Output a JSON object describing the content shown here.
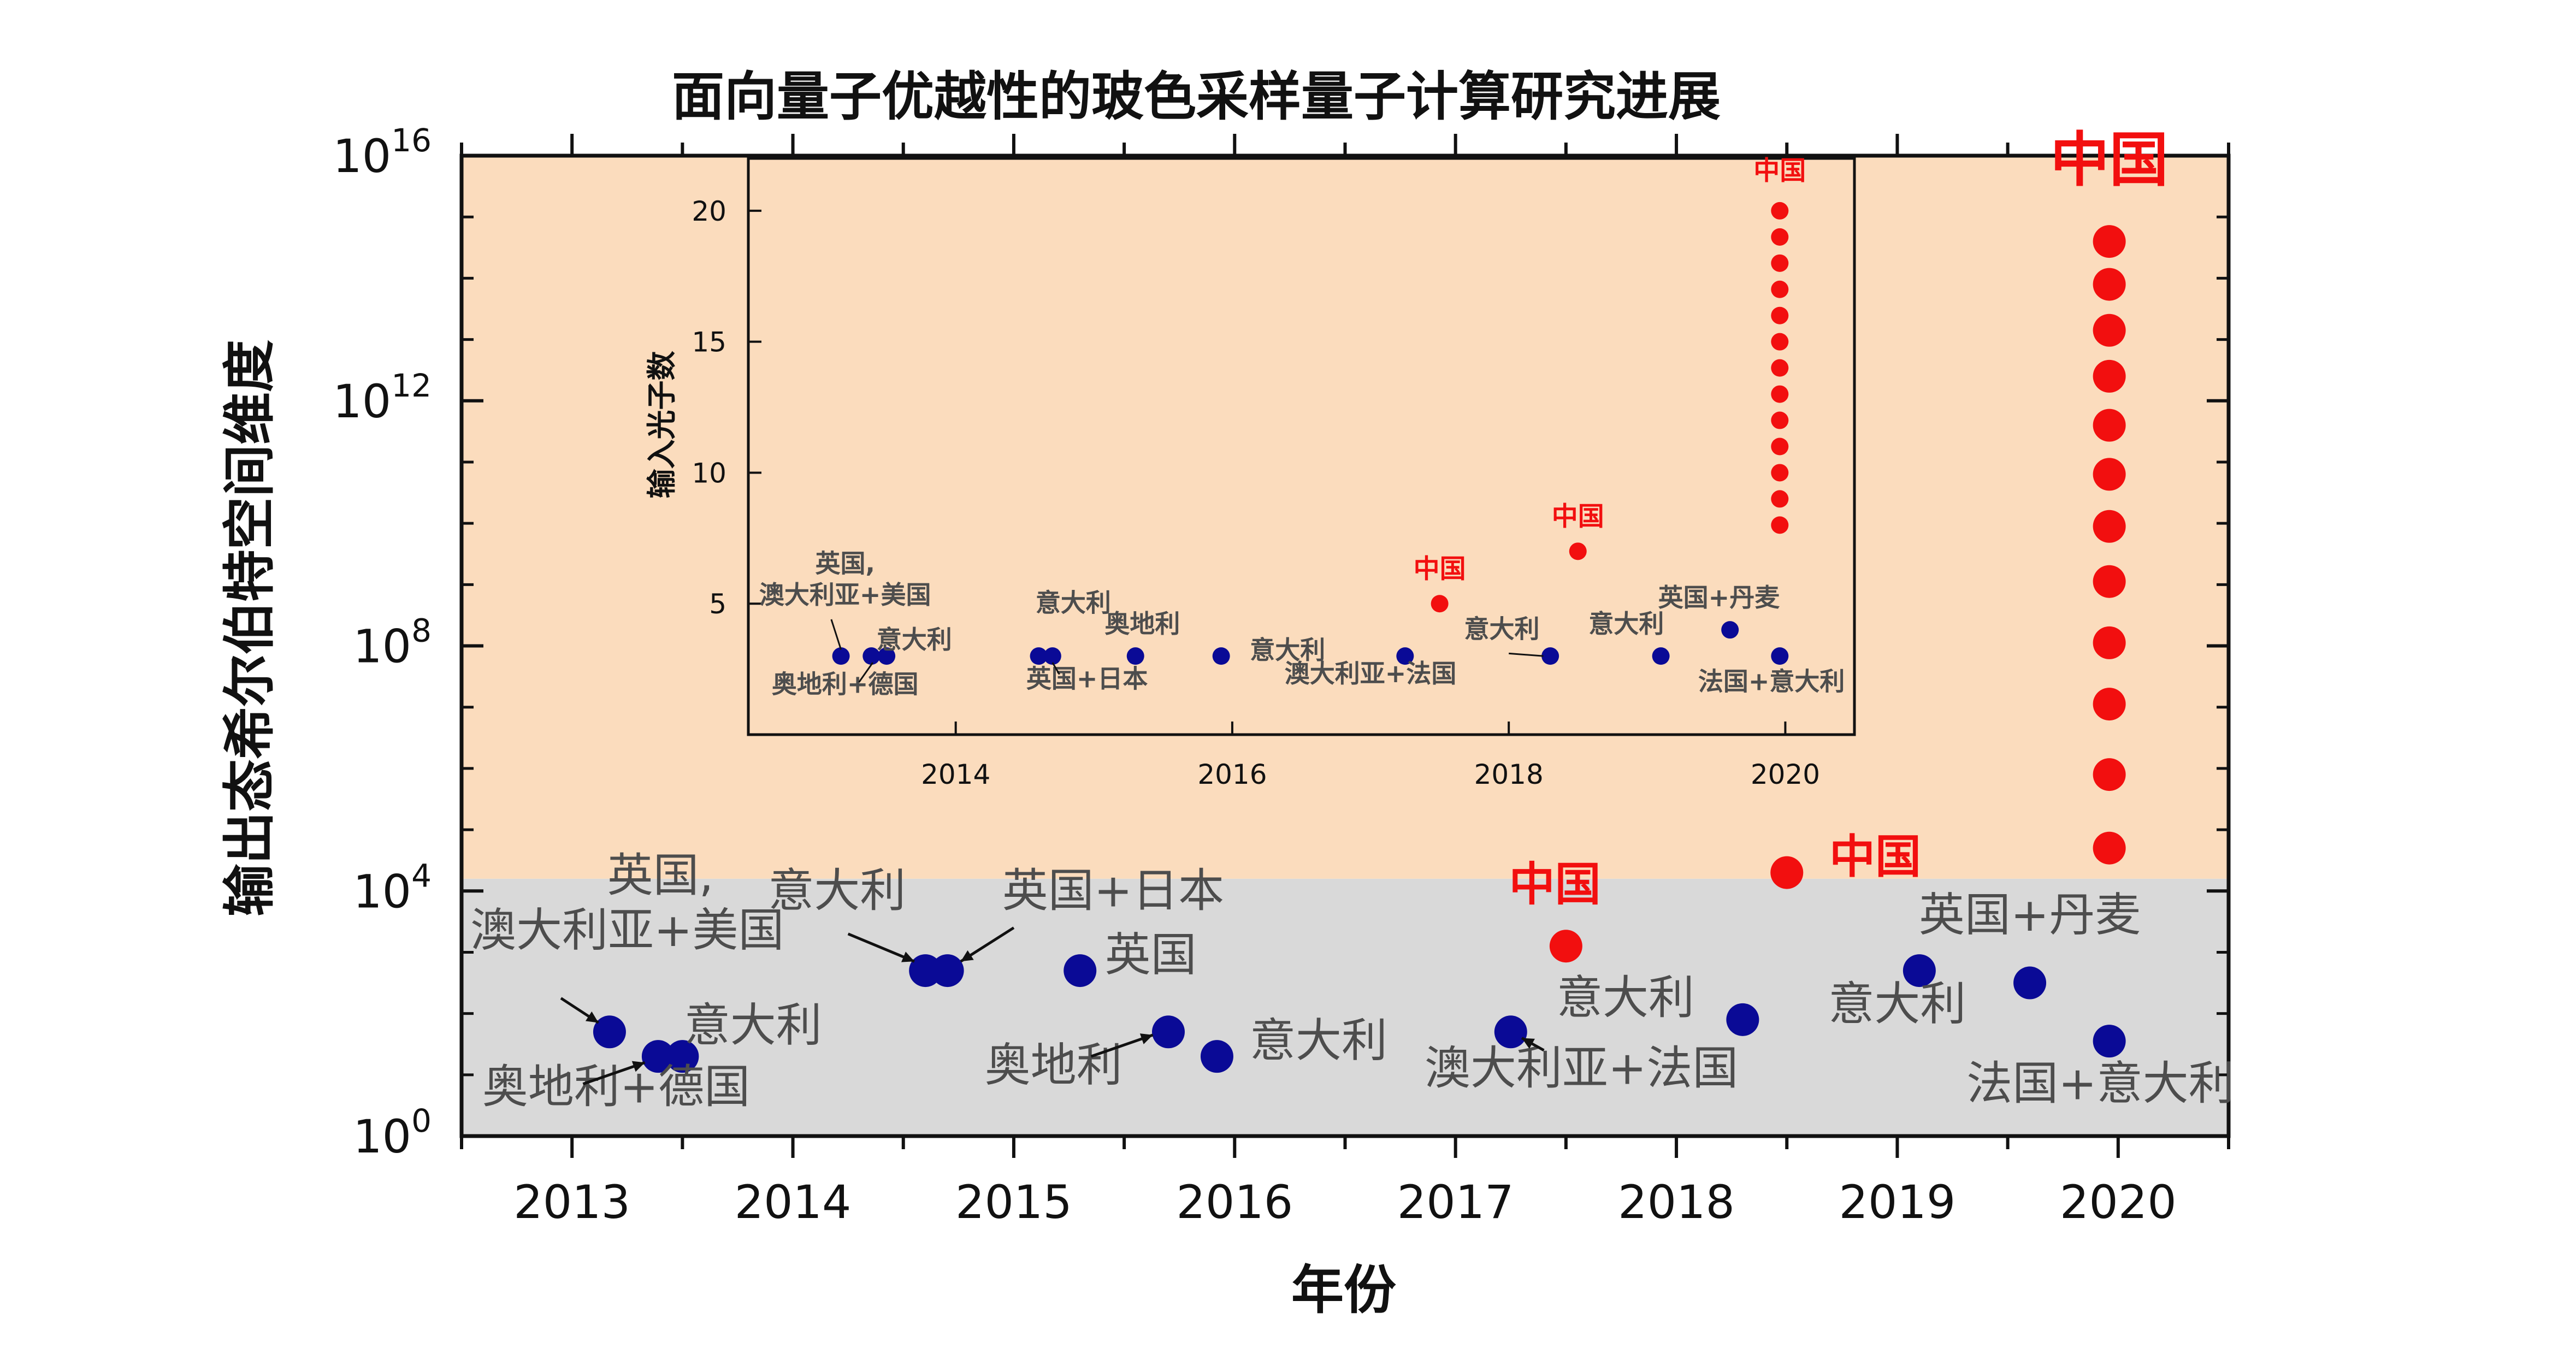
{
  "chart_data": [
    {
      "type": "scatter",
      "title": "面向量子优越性的玻色采样量子计算研究进展",
      "xlabel": "年份",
      "ylabel": "输出态希尔伯特空间维度",
      "xlim": [
        2012.5,
        2020.5
      ],
      "ylim_log10": [
        0,
        16
      ],
      "y_scale": "log",
      "x_ticks": [
        "2013",
        "2014",
        "2015",
        "2016",
        "2017",
        "2018",
        "2019",
        "2020"
      ],
      "y_ticks": [
        {
          "base": "10",
          "exp": "0"
        },
        {
          "base": "10",
          "exp": "4"
        },
        {
          "base": "10",
          "exp": "8"
        },
        {
          "base": "10",
          "exp": "12"
        },
        {
          "base": "10",
          "exp": "16"
        }
      ],
      "shaded_bands": [
        {
          "from_log10": 0,
          "to_log10": 4.2,
          "color": "#d9d9d9"
        },
        {
          "from_log10": 4.2,
          "to_log10": 16,
          "color": "#fbdcbd"
        }
      ],
      "colors": {
        "other": "#0a0a96",
        "china": "#f20f0f",
        "label_other": "#4d4d4d",
        "label_china": "#f20f0f"
      },
      "series": [
        {
          "country": "other",
          "points": [
            {
              "x": 2013.17,
              "y_log10": 1.7
            },
            {
              "x": 2013.39,
              "y_log10": 1.3
            },
            {
              "x": 2013.5,
              "y_log10": 1.3
            },
            {
              "x": 2014.6,
              "y_log10": 2.7
            },
            {
              "x": 2014.7,
              "y_log10": 2.7
            },
            {
              "x": 2015.3,
              "y_log10": 2.7
            },
            {
              "x": 2015.7,
              "y_log10": 1.7
            },
            {
              "x": 2015.92,
              "y_log10": 1.3
            },
            {
              "x": 2017.25,
              "y_log10": 1.7
            },
            {
              "x": 2018.3,
              "y_log10": 1.9
            },
            {
              "x": 2019.1,
              "y_log10": 2.7
            },
            {
              "x": 2019.6,
              "y_log10": 2.5
            },
            {
              "x": 2019.96,
              "y_log10": 1.55
            }
          ]
        },
        {
          "country": "china",
          "points": [
            {
              "x": 2017.5,
              "y_log10": 3.1
            },
            {
              "x": 2018.5,
              "y_log10": 4.3
            },
            {
              "x": 2019.96,
              "y_log10": 4.7
            },
            {
              "x": 2019.96,
              "y_log10": 5.9
            },
            {
              "x": 2019.96,
              "y_log10": 7.05
            },
            {
              "x": 2019.96,
              "y_log10": 8.05
            },
            {
              "x": 2019.96,
              "y_log10": 9.05
            },
            {
              "x": 2019.96,
              "y_log10": 9.95
            },
            {
              "x": 2019.96,
              "y_log10": 10.8
            },
            {
              "x": 2019.96,
              "y_log10": 11.6
            },
            {
              "x": 2019.96,
              "y_log10": 12.4
            },
            {
              "x": 2019.96,
              "y_log10": 13.15
            },
            {
              "x": 2019.96,
              "y_log10": 13.9
            },
            {
              "x": 2019.96,
              "y_log10": 14.6
            }
          ]
        }
      ],
      "annotations": [
        {
          "text": "英国,",
          "color": "other",
          "x": 2013.4,
          "y_log10": 4.0
        },
        {
          "text": "澳大利亚+美国",
          "color": "other",
          "x": 2013.25,
          "y_log10": 3.1
        },
        {
          "text": "奥地利+德国",
          "color": "other",
          "x": 2013.2,
          "y_log10": 0.55
        },
        {
          "text": "意大利",
          "color": "other",
          "x": 2013.82,
          "y_log10": 1.55
        },
        {
          "text": "意大利",
          "color": "other",
          "x": 2014.2,
          "y_log10": 3.75
        },
        {
          "text": "英国+日本",
          "color": "other",
          "x": 2015.45,
          "y_log10": 3.75
        },
        {
          "text": "英国",
          "color": "other",
          "x": 2015.62,
          "y_log10": 2.7
        },
        {
          "text": "奥地利",
          "color": "other",
          "x": 2015.18,
          "y_log10": 0.9
        },
        {
          "text": "意大利",
          "color": "other",
          "x": 2016.38,
          "y_log10": 1.3
        },
        {
          "text": "澳大利亚+法国",
          "color": "other",
          "x": 2017.57,
          "y_log10": 0.85
        },
        {
          "text": "意大利",
          "color": "other",
          "x": 2017.77,
          "y_log10": 2.0
        },
        {
          "text": "意大利",
          "color": "other",
          "x": 2019.0,
          "y_log10": 1.9
        },
        {
          "text": "英国+丹麦",
          "color": "other",
          "x": 2019.6,
          "y_log10": 3.35
        },
        {
          "text": "法国+意大利",
          "color": "other",
          "x": 2019.92,
          "y_log10": 0.6
        },
        {
          "text": "中国",
          "color": "china",
          "x": 2017.45,
          "y_log10": 3.85
        },
        {
          "text": "中国",
          "color": "china",
          "x": 2018.9,
          "y_log10": 4.3
        },
        {
          "text": "中国",
          "color": "china",
          "x": 2019.96,
          "y_log10": 15.6
        }
      ]
    },
    {
      "type": "scatter",
      "title": "",
      "xlabel": "",
      "ylabel": "输入光子数",
      "xlim": [
        2012.5,
        2020.5
      ],
      "ylim": [
        0,
        22
      ],
      "x_ticks": [
        "2014",
        "2016",
        "2018",
        "2020"
      ],
      "y_ticks": [
        "5",
        "10",
        "15",
        "20"
      ],
      "colors": {
        "other": "#0a0a96",
        "china": "#f20f0f",
        "label_other": "#4d4d4d",
        "label_china": "#f20f0f"
      },
      "series": [
        {
          "country": "other",
          "points": [
            {
              "x": 2013.17,
              "y": 3
            },
            {
              "x": 2013.39,
              "y": 3
            },
            {
              "x": 2013.5,
              "y": 3
            },
            {
              "x": 2014.6,
              "y": 3
            },
            {
              "x": 2014.7,
              "y": 3
            },
            {
              "x": 2015.3,
              "y": 3
            },
            {
              "x": 2015.92,
              "y": 3
            },
            {
              "x": 2017.25,
              "y": 3
            },
            {
              "x": 2018.3,
              "y": 3
            },
            {
              "x": 2019.1,
              "y": 3
            },
            {
              "x": 2019.6,
              "y": 4
            },
            {
              "x": 2019.96,
              "y": 3
            }
          ]
        },
        {
          "country": "china",
          "points": [
            {
              "x": 2017.5,
              "y": 5
            },
            {
              "x": 2018.5,
              "y": 7
            },
            {
              "x": 2019.96,
              "y": 8
            },
            {
              "x": 2019.96,
              "y": 9
            },
            {
              "x": 2019.96,
              "y": 10
            },
            {
              "x": 2019.96,
              "y": 11
            },
            {
              "x": 2019.96,
              "y": 12
            },
            {
              "x": 2019.96,
              "y": 13
            },
            {
              "x": 2019.96,
              "y": 14
            },
            {
              "x": 2019.96,
              "y": 15
            },
            {
              "x": 2019.96,
              "y": 16
            },
            {
              "x": 2019.96,
              "y": 17
            },
            {
              "x": 2019.96,
              "y": 18
            },
            {
              "x": 2019.96,
              "y": 19
            },
            {
              "x": 2019.96,
              "y": 20
            }
          ]
        }
      ],
      "annotations": [
        {
          "text": "英国,",
          "color": "other",
          "x": 2013.2,
          "y": 6.2
        },
        {
          "text": "澳大利亚+美国",
          "color": "other",
          "x": 2013.2,
          "y": 5.0
        },
        {
          "text": "奥地利+德国",
          "color": "other",
          "x": 2013.2,
          "y": 1.6
        },
        {
          "text": "意大利",
          "color": "other",
          "x": 2013.7,
          "y": 3.3
        },
        {
          "text": "意大利",
          "color": "other",
          "x": 2014.85,
          "y": 4.7
        },
        {
          "text": "英国+日本",
          "color": "other",
          "x": 2014.95,
          "y": 1.8
        },
        {
          "text": "奥地利",
          "color": "other",
          "x": 2015.35,
          "y": 3.9
        },
        {
          "text": "意大利",
          "color": "other",
          "x": 2016.4,
          "y": 2.9
        },
        {
          "text": "澳大利亚+法国",
          "color": "other",
          "x": 2017.0,
          "y": 2.0
        },
        {
          "text": "中国",
          "color": "china",
          "x": 2017.5,
          "y": 6.0
        },
        {
          "text": "意大利",
          "color": "other",
          "x": 2017.95,
          "y": 3.7
        },
        {
          "text": "中国",
          "color": "china",
          "x": 2018.5,
          "y": 8.0
        },
        {
          "text": "意大利",
          "color": "other",
          "x": 2018.85,
          "y": 3.9
        },
        {
          "text": "英国+丹麦",
          "color": "other",
          "x": 2019.52,
          "y": 4.9
        },
        {
          "text": "法国+意大利",
          "color": "other",
          "x": 2019.9,
          "y": 1.7
        },
        {
          "text": "中国",
          "color": "china",
          "x": 2019.96,
          "y": 21.2
        }
      ]
    }
  ]
}
